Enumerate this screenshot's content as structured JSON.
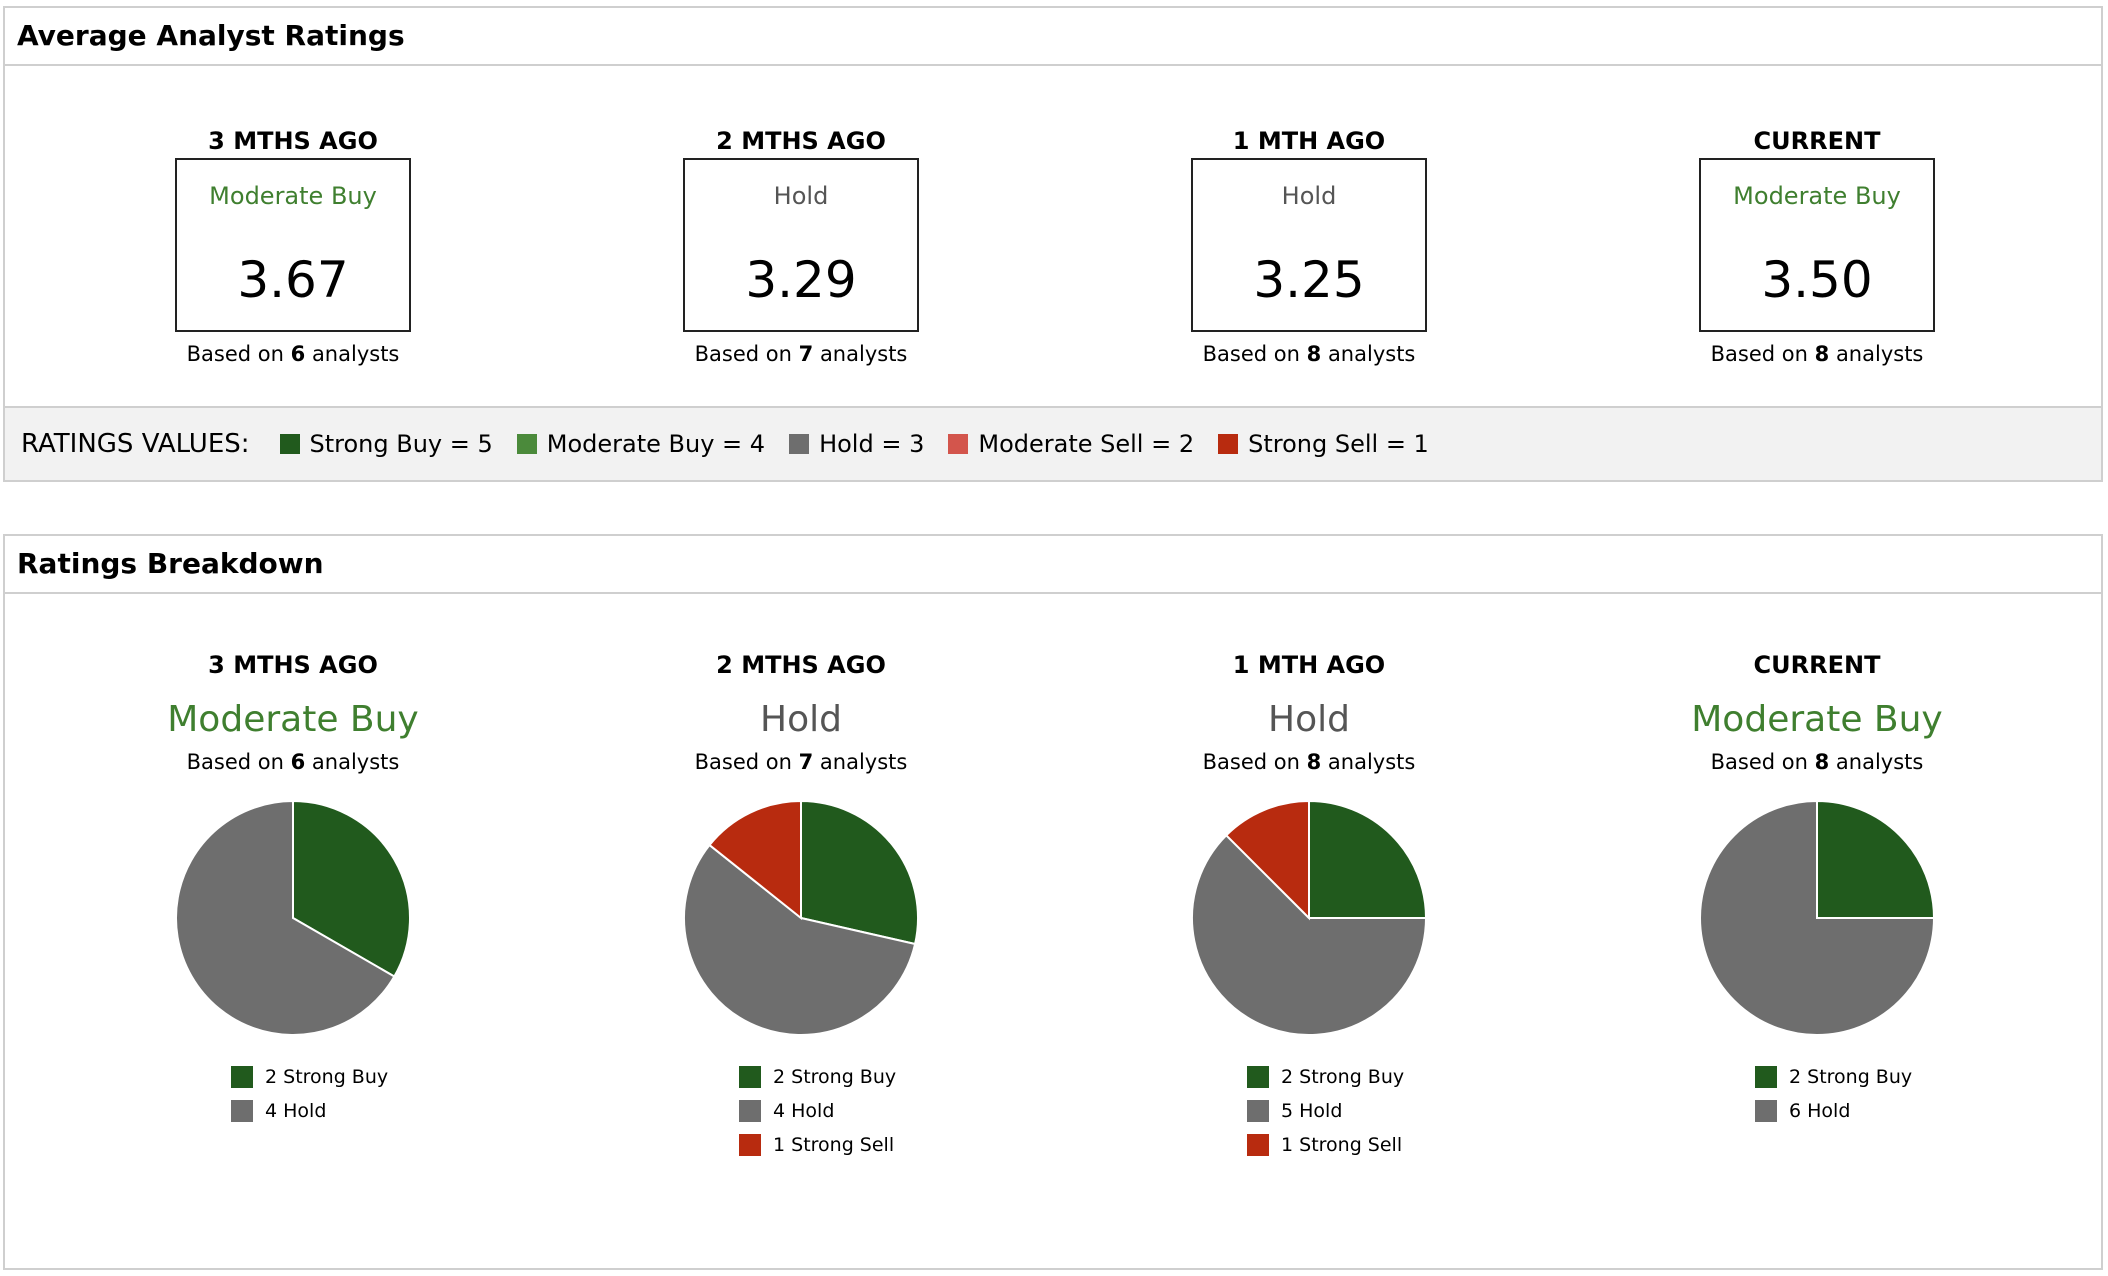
{
  "colors": {
    "strong_buy": "#215a1d",
    "moderate_buy": "#4b8a3b",
    "hold": "#6e6e6e",
    "moderate_sell": "#d3554c",
    "strong_sell": "#b82b0f",
    "label_buy": "#3f7f2f",
    "label_hold": "#555555"
  },
  "average": {
    "title": "Average Analyst Ratings",
    "periods": [
      {
        "period": "3 MTHS AGO",
        "label": "Moderate Buy",
        "score": "3.67",
        "analysts": "6",
        "tone": "buy"
      },
      {
        "period": "2 MTHS AGO",
        "label": "Hold",
        "score": "3.29",
        "analysts": "7",
        "tone": "hold"
      },
      {
        "period": "1 MTH AGO",
        "label": "Hold",
        "score": "3.25",
        "analysts": "8",
        "tone": "hold"
      },
      {
        "period": "CURRENT",
        "label": "Moderate Buy",
        "score": "3.50",
        "analysts": "8",
        "tone": "buy"
      }
    ],
    "based_prefix": "Based on",
    "based_suffix": "analysts",
    "legend_title": "RATINGS VALUES:",
    "legend": [
      {
        "label": "Strong Buy = 5",
        "color_key": "strong_buy"
      },
      {
        "label": "Moderate Buy = 4",
        "color_key": "moderate_buy"
      },
      {
        "label": "Hold = 3",
        "color_key": "hold"
      },
      {
        "label": "Moderate Sell = 2",
        "color_key": "moderate_sell"
      },
      {
        "label": "Strong Sell = 1",
        "color_key": "strong_sell"
      }
    ]
  },
  "breakdown": {
    "title": "Ratings Breakdown"
  },
  "chart_data": [
    {
      "type": "pie",
      "title": "3 MTHS AGO",
      "subtitle": "Moderate Buy",
      "analysts": "6",
      "slices": [
        {
          "label": "Strong Buy",
          "value": 2,
          "color_key": "strong_buy"
        },
        {
          "label": "Hold",
          "value": 4,
          "color_key": "hold"
        }
      ]
    },
    {
      "type": "pie",
      "title": "2 MTHS AGO",
      "subtitle": "Hold",
      "analysts": "7",
      "slices": [
        {
          "label": "Strong Buy",
          "value": 2,
          "color_key": "strong_buy"
        },
        {
          "label": "Hold",
          "value": 4,
          "color_key": "hold"
        },
        {
          "label": "Strong Sell",
          "value": 1,
          "color_key": "strong_sell"
        }
      ]
    },
    {
      "type": "pie",
      "title": "1 MTH AGO",
      "subtitle": "Hold",
      "analysts": "8",
      "slices": [
        {
          "label": "Strong Buy",
          "value": 2,
          "color_key": "strong_buy"
        },
        {
          "label": "Hold",
          "value": 5,
          "color_key": "hold"
        },
        {
          "label": "Strong Sell",
          "value": 1,
          "color_key": "strong_sell"
        }
      ]
    },
    {
      "type": "pie",
      "title": "CURRENT",
      "subtitle": "Moderate Buy",
      "analysts": "8",
      "slices": [
        {
          "label": "Strong Buy",
          "value": 2,
          "color_key": "strong_buy"
        },
        {
          "label": "Hold",
          "value": 6,
          "color_key": "hold"
        }
      ]
    }
  ]
}
